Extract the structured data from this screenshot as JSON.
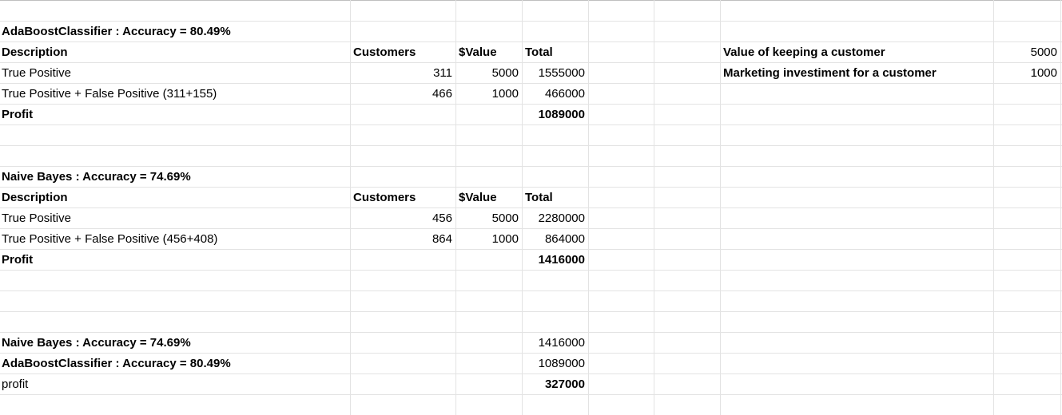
{
  "block1": {
    "title": "AdaBoostClassifier : Accuracy = 80.49%",
    "header": {
      "description": "Description",
      "customers": "Customers",
      "value": "$Value",
      "total": "Total"
    },
    "rows": [
      {
        "description": "True Positive",
        "customers": "311",
        "value": "5000",
        "total": "1555000"
      },
      {
        "description": "True Positive + False Positive (311+155)",
        "customers": "466",
        "value": "1000",
        "total": "466000"
      }
    ],
    "profit": {
      "label": "Profit",
      "total": "1089000"
    }
  },
  "params": [
    {
      "label": "Value of keeping a customer",
      "value": "5000"
    },
    {
      "label": "Marketing investiment for a customer",
      "value": "1000"
    }
  ],
  "block2": {
    "title": "Naive Bayes : Accuracy = 74.69%",
    "header": {
      "description": "Description",
      "customers": "Customers",
      "value": "$Value",
      "total": "Total"
    },
    "rows": [
      {
        "description": "True Positive",
        "customers": "456",
        "value": "5000",
        "total": "2280000"
      },
      {
        "description": "True Positive + False Positive (456+408)",
        "customers": "864",
        "value": "1000",
        "total": "864000"
      }
    ],
    "profit": {
      "label": "Profit",
      "total": "1416000"
    }
  },
  "summary": [
    {
      "label": "Naive Bayes : Accuracy = 74.69%",
      "total": "1416000"
    },
    {
      "label": "AdaBoostClassifier : Accuracy = 80.49%",
      "total": "1089000"
    },
    {
      "label": "profit",
      "total": "327000"
    }
  ]
}
